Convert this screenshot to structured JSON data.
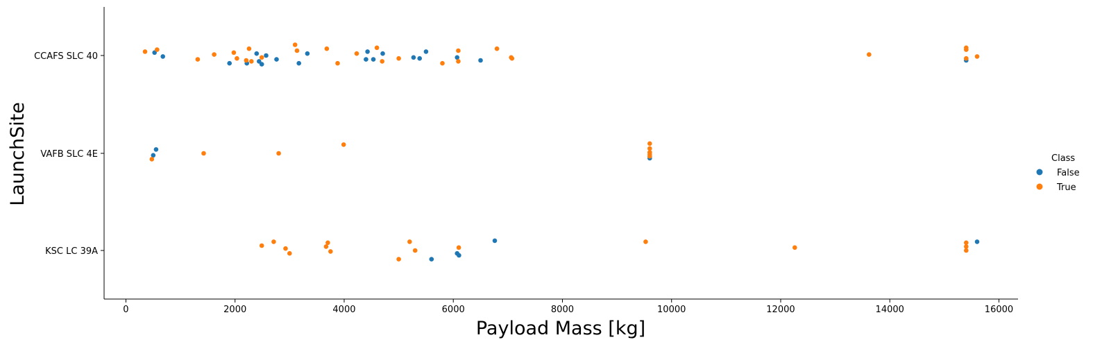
{
  "chart_data": {
    "type": "scatter",
    "subtype": "strip",
    "title": "",
    "xlabel": "Payload Mass [kg]",
    "ylabel": "LaunchSite",
    "xlim": [
      -400,
      16350
    ],
    "x_ticks": [
      0,
      2000,
      4000,
      6000,
      8000,
      10000,
      12000,
      14000,
      16000
    ],
    "x_tick_labels": [
      "0",
      "2000",
      "4000",
      "6000",
      "8000",
      "10000",
      "12000",
      "14000",
      "16000"
    ],
    "categories": [
      "CCAFS SLC 40",
      "VAFB SLC 4E",
      "KSC LC 39A"
    ],
    "grid": false,
    "legend": {
      "title": "Class",
      "position": "right"
    },
    "series": [
      {
        "name": "False",
        "color": "#1f77b4",
        "points": [
          {
            "site": "CCAFS SLC 40",
            "x": 525,
            "jitter": 0.03
          },
          {
            "site": "CCAFS SLC 40",
            "x": 677,
            "jitter": -0.01
          },
          {
            "site": "CCAFS SLC 40",
            "x": 1898,
            "jitter": -0.08
          },
          {
            "site": "CCAFS SLC 40",
            "x": 2216,
            "jitter": -0.08
          },
          {
            "site": "CCAFS SLC 40",
            "x": 2395,
            "jitter": 0.02
          },
          {
            "site": "CCAFS SLC 40",
            "x": 2440,
            "jitter": -0.06
          },
          {
            "site": "CCAFS SLC 40",
            "x": 2490,
            "jitter": -0.09
          },
          {
            "site": "CCAFS SLC 40",
            "x": 2570,
            "jitter": 0.0
          },
          {
            "site": "CCAFS SLC 40",
            "x": 2760,
            "jitter": -0.04
          },
          {
            "site": "CCAFS SLC 40",
            "x": 3170,
            "jitter": -0.08
          },
          {
            "site": "CCAFS SLC 40",
            "x": 3325,
            "jitter": 0.02
          },
          {
            "site": "CCAFS SLC 40",
            "x": 4400,
            "jitter": -0.04
          },
          {
            "site": "CCAFS SLC 40",
            "x": 4428,
            "jitter": 0.04
          },
          {
            "site": "CCAFS SLC 40",
            "x": 4535,
            "jitter": -0.04
          },
          {
            "site": "CCAFS SLC 40",
            "x": 4707,
            "jitter": 0.02
          },
          {
            "site": "CCAFS SLC 40",
            "x": 5271,
            "jitter": -0.02
          },
          {
            "site": "CCAFS SLC 40",
            "x": 5383,
            "jitter": -0.03
          },
          {
            "site": "CCAFS SLC 40",
            "x": 5500,
            "jitter": 0.04
          },
          {
            "site": "CCAFS SLC 40",
            "x": 6070,
            "jitter": -0.02
          },
          {
            "site": "CCAFS SLC 40",
            "x": 6500,
            "jitter": -0.05
          },
          {
            "site": "CCAFS SLC 40",
            "x": 15400,
            "jitter": -0.05
          },
          {
            "site": "VAFB SLC 4E",
            "x": 500,
            "jitter": -0.02
          },
          {
            "site": "VAFB SLC 4E",
            "x": 553,
            "jitter": 0.04
          },
          {
            "site": "VAFB SLC 4E",
            "x": 9600,
            "jitter": -0.05
          },
          {
            "site": "KSC LC 39A",
            "x": 5600,
            "jitter": -0.09
          },
          {
            "site": "KSC LC 39A",
            "x": 6070,
            "jitter": -0.03
          },
          {
            "site": "KSC LC 39A",
            "x": 6104,
            "jitter": -0.05
          },
          {
            "site": "KSC LC 39A",
            "x": 6761,
            "jitter": 0.1
          },
          {
            "site": "KSC LC 39A",
            "x": 15600,
            "jitter": 0.09
          }
        ]
      },
      {
        "name": "True",
        "color": "#ff7f0e",
        "points": [
          {
            "site": "CCAFS SLC 40",
            "x": 350,
            "jitter": 0.04
          },
          {
            "site": "CCAFS SLC 40",
            "x": 570,
            "jitter": 0.06
          },
          {
            "site": "CCAFS SLC 40",
            "x": 1316,
            "jitter": -0.04
          },
          {
            "site": "CCAFS SLC 40",
            "x": 1617,
            "jitter": 0.01
          },
          {
            "site": "CCAFS SLC 40",
            "x": 1977,
            "jitter": 0.03
          },
          {
            "site": "CCAFS SLC 40",
            "x": 2034,
            "jitter": -0.03
          },
          {
            "site": "CCAFS SLC 40",
            "x": 2205,
            "jitter": -0.05
          },
          {
            "site": "CCAFS SLC 40",
            "x": 2257,
            "jitter": 0.07
          },
          {
            "site": "CCAFS SLC 40",
            "x": 2300,
            "jitter": -0.06
          },
          {
            "site": "CCAFS SLC 40",
            "x": 2490,
            "jitter": -0.02
          },
          {
            "site": "CCAFS SLC 40",
            "x": 3100,
            "jitter": 0.11
          },
          {
            "site": "CCAFS SLC 40",
            "x": 3136,
            "jitter": 0.05
          },
          {
            "site": "CCAFS SLC 40",
            "x": 3681,
            "jitter": 0.07
          },
          {
            "site": "CCAFS SLC 40",
            "x": 3880,
            "jitter": -0.08
          },
          {
            "site": "CCAFS SLC 40",
            "x": 4230,
            "jitter": 0.02
          },
          {
            "site": "CCAFS SLC 40",
            "x": 4600,
            "jitter": 0.08
          },
          {
            "site": "CCAFS SLC 40",
            "x": 4696,
            "jitter": -0.06
          },
          {
            "site": "CCAFS SLC 40",
            "x": 5000,
            "jitter": -0.03
          },
          {
            "site": "CCAFS SLC 40",
            "x": 5800,
            "jitter": -0.08
          },
          {
            "site": "CCAFS SLC 40",
            "x": 6092,
            "jitter": 0.05
          },
          {
            "site": "CCAFS SLC 40",
            "x": 6092,
            "jitter": -0.06
          },
          {
            "site": "CCAFS SLC 40",
            "x": 6800,
            "jitter": 0.07
          },
          {
            "site": "CCAFS SLC 40",
            "x": 7060,
            "jitter": -0.02
          },
          {
            "site": "CCAFS SLC 40",
            "x": 7076,
            "jitter": -0.03
          },
          {
            "site": "CCAFS SLC 40",
            "x": 13620,
            "jitter": 0.01
          },
          {
            "site": "CCAFS SLC 40",
            "x": 15400,
            "jitter": 0.08
          },
          {
            "site": "CCAFS SLC 40",
            "x": 15400,
            "jitter": 0.06
          },
          {
            "site": "CCAFS SLC 40",
            "x": 15400,
            "jitter": -0.03
          },
          {
            "site": "CCAFS SLC 40",
            "x": 15600,
            "jitter": -0.01
          },
          {
            "site": "VAFB SLC 4E",
            "x": 475,
            "jitter": -0.06
          },
          {
            "site": "VAFB SLC 4E",
            "x": 1425,
            "jitter": 0.0
          },
          {
            "site": "VAFB SLC 4E",
            "x": 2800,
            "jitter": 0.0
          },
          {
            "site": "VAFB SLC 4E",
            "x": 3990,
            "jitter": 0.09
          },
          {
            "site": "VAFB SLC 4E",
            "x": 9600,
            "jitter": 0.1
          },
          {
            "site": "VAFB SLC 4E",
            "x": 9600,
            "jitter": 0.05
          },
          {
            "site": "VAFB SLC 4E",
            "x": 9600,
            "jitter": 0.01
          },
          {
            "site": "VAFB SLC 4E",
            "x": 9600,
            "jitter": -0.01
          },
          {
            "site": "VAFB SLC 4E",
            "x": 9600,
            "jitter": -0.03
          },
          {
            "site": "KSC LC 39A",
            "x": 2490,
            "jitter": 0.05
          },
          {
            "site": "KSC LC 39A",
            "x": 2708,
            "jitter": 0.09
          },
          {
            "site": "KSC LC 39A",
            "x": 2926,
            "jitter": 0.02
          },
          {
            "site": "KSC LC 39A",
            "x": 3000,
            "jitter": -0.03
          },
          {
            "site": "KSC LC 39A",
            "x": 3669,
            "jitter": 0.04
          },
          {
            "site": "KSC LC 39A",
            "x": 3700,
            "jitter": 0.08
          },
          {
            "site": "KSC LC 39A",
            "x": 3750,
            "jitter": -0.01
          },
          {
            "site": "KSC LC 39A",
            "x": 5000,
            "jitter": -0.09
          },
          {
            "site": "KSC LC 39A",
            "x": 5200,
            "jitter": 0.09
          },
          {
            "site": "KSC LC 39A",
            "x": 5300,
            "jitter": 0.0
          },
          {
            "site": "KSC LC 39A",
            "x": 6100,
            "jitter": 0.03
          },
          {
            "site": "KSC LC 39A",
            "x": 9525,
            "jitter": 0.09
          },
          {
            "site": "KSC LC 39A",
            "x": 12259,
            "jitter": 0.03
          },
          {
            "site": "KSC LC 39A",
            "x": 15400,
            "jitter": 0.08
          },
          {
            "site": "KSC LC 39A",
            "x": 15400,
            "jitter": 0.04
          },
          {
            "site": "KSC LC 39A",
            "x": 15400,
            "jitter": 0.0
          }
        ]
      }
    ]
  }
}
